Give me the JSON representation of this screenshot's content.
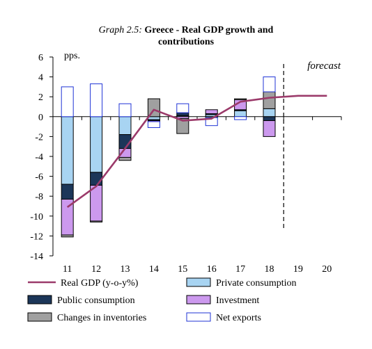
{
  "chart_data": {
    "type": "bar",
    "title_prefix": "Graph 2.5:",
    "title": "Greece - Real GDP growth and",
    "title_line2": "contributions",
    "ylabel": "pps.",
    "annotation": "forecast",
    "ylim": [
      -14,
      6
    ],
    "y_ticks": [
      "6",
      "4",
      "2",
      "0",
      "-2",
      "-4",
      "-6",
      "-8",
      "-10",
      "-12",
      "-14"
    ],
    "categories": [
      "11",
      "12",
      "13",
      "14",
      "15",
      "16",
      "17",
      "18",
      "19",
      "20"
    ],
    "forecast_after": "18",
    "legend_position": "bottom",
    "colors": {
      "gdp_line": "#9b3a6a",
      "private_consumption": "#a8d4f2",
      "public_consumption": "#1c3659",
      "investment": "#cc99ee",
      "changes_in_inventories": "#a0a0a0",
      "net_exports": "#ffffff",
      "net_exports_border": "#1f33d6"
    },
    "series": [
      {
        "name": "Private consumption",
        "key": "private_consumption",
        "kind": "bar",
        "values": [
          -6.8,
          -5.6,
          -1.8,
          -0.3,
          0.1,
          0.2,
          0.6,
          0.8,
          null,
          null
        ]
      },
      {
        "name": "Public consumption",
        "key": "public_consumption",
        "kind": "bar",
        "values": [
          -1.5,
          -1.3,
          -1.4,
          -0.1,
          0.3,
          0.1,
          0.1,
          -0.4,
          null,
          null
        ]
      },
      {
        "name": "Investment",
        "key": "investment",
        "kind": "bar",
        "values": [
          -3.6,
          -3.6,
          -0.9,
          -0.1,
          -0.2,
          0.4,
          1.0,
          -1.6,
          null,
          null
        ]
      },
      {
        "name": "Changes in inventories",
        "key": "changes_in_inventories",
        "kind": "bar",
        "values": [
          -0.2,
          -0.1,
          -0.3,
          1.8,
          -1.5,
          -0.1,
          0.1,
          1.7,
          null,
          null
        ]
      },
      {
        "name": "Net exports",
        "key": "net_exports",
        "kind": "bar",
        "values": [
          3.0,
          3.3,
          1.3,
          -0.6,
          0.9,
          -0.8,
          -0.3,
          1.5,
          null,
          null
        ]
      },
      {
        "name": "Real GDP (y-o-y%)",
        "key": "gdp_line",
        "kind": "line",
        "values": [
          -9.1,
          -7.0,
          -3.2,
          0.7,
          -0.4,
          -0.2,
          1.5,
          1.9,
          2.1,
          2.1
        ]
      }
    ],
    "legend": [
      {
        "label": "Real GDP (y-o-y%)",
        "key": "gdp_line",
        "kind": "line"
      },
      {
        "label": "Private consumption",
        "key": "private_consumption",
        "kind": "box"
      },
      {
        "label": "Public consumption",
        "key": "public_consumption",
        "kind": "box"
      },
      {
        "label": "Investment",
        "key": "investment",
        "kind": "box"
      },
      {
        "label": "Changes in inventories",
        "key": "changes_in_inventories",
        "kind": "box"
      },
      {
        "label": "Net exports",
        "key": "net_exports",
        "kind": "box"
      }
    ]
  }
}
